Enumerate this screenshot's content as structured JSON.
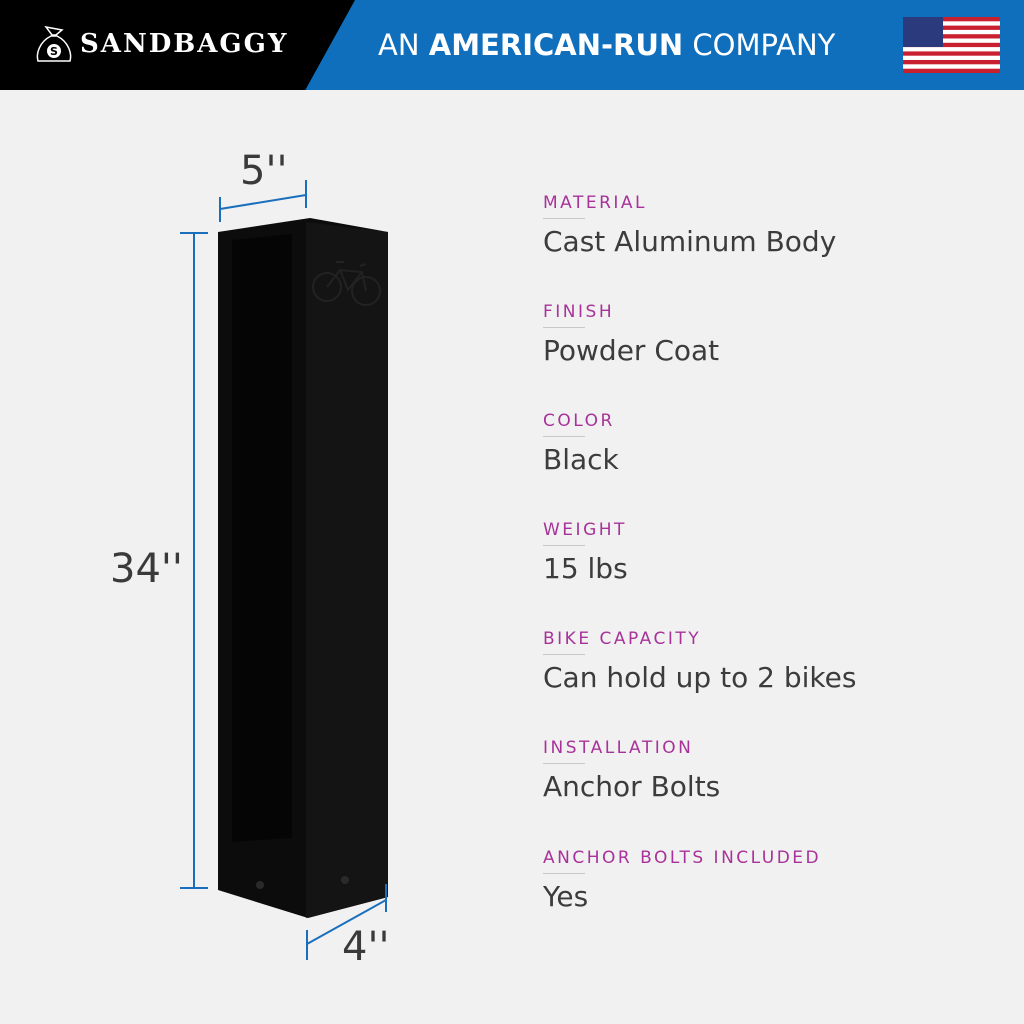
{
  "header": {
    "brand": "sandbaggy",
    "tagline_pre": "AN ",
    "tagline_bold": "AMERICAN-RUN",
    "tagline_post": " COMPANY",
    "flag": "us-flag-icon",
    "colors": {
      "blue": "#0f6fbd",
      "black": "#000000"
    }
  },
  "dimensions": {
    "width": "5''",
    "height": "34''",
    "depth": "4''"
  },
  "specs": [
    {
      "label": "MATERIAL",
      "value": "Cast Aluminum Body"
    },
    {
      "label": "FINISH",
      "value": "Powder Coat"
    },
    {
      "label": "COLOR",
      "value": "Black"
    },
    {
      "label": "WEIGHT",
      "value": "15 lbs"
    },
    {
      "label": "BIKE CAPACITY",
      "value": "Can hold up to 2 bikes"
    },
    {
      "label": "INSTALLATION",
      "value": "Anchor Bolts"
    },
    {
      "label": "ANCHOR BOLTS INCLUDED",
      "value": "Yes"
    }
  ],
  "colors": {
    "label": "#a8329a",
    "dimension_line": "#1a6fbd"
  }
}
